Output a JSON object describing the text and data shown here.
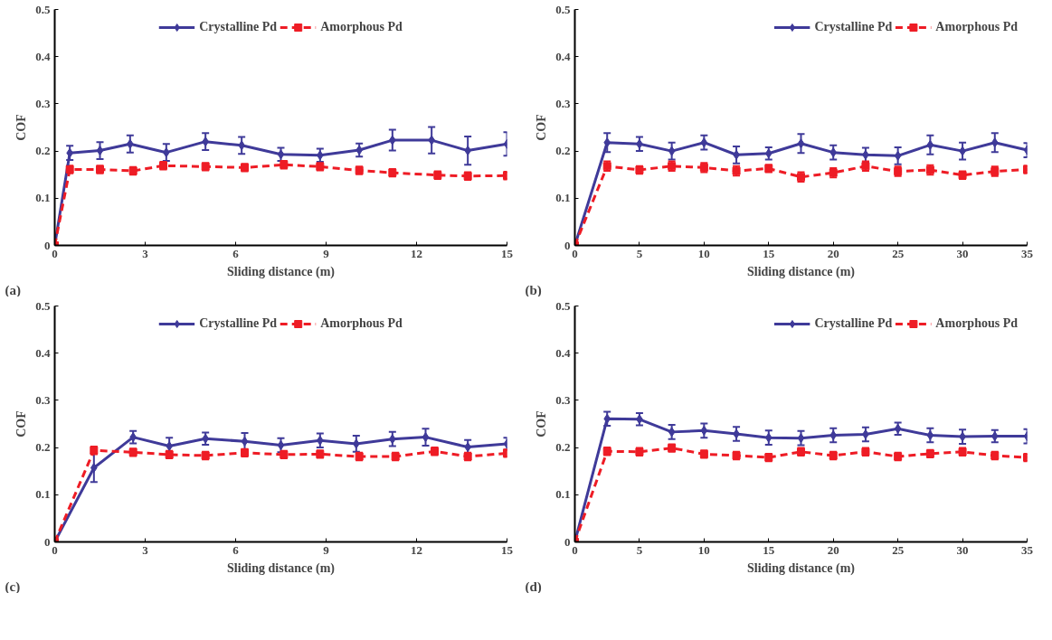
{
  "chart_data": [
    {
      "type": "line",
      "xlabel": "Sliding distance (m)",
      "ylabel": "COF",
      "annotations": [
        "(a)"
      ],
      "xlim": [
        0,
        15
      ],
      "xticks": [
        0,
        3,
        6,
        9,
        12,
        15
      ],
      "ylim": [
        0,
        0.5
      ],
      "yticks": [
        0,
        0.1,
        0.2,
        0.3,
        0.4,
        0.5
      ],
      "grid": false,
      "legend": "top",
      "series": [
        {
          "name": "Crystalline Pd",
          "color": "#3f3a99",
          "marker": "diamond",
          "line_style": "solid",
          "x": [
            0,
            0.5,
            1.5,
            2.5,
            3.7,
            5,
            6.2,
            7.5,
            8.8,
            10.1,
            11.2,
            12.5,
            13.7,
            15
          ],
          "values": [
            0,
            0.196,
            0.201,
            0.215,
            0.197,
            0.22,
            0.212,
            0.193,
            0.191,
            0.202,
            0.223,
            0.223,
            0.201,
            0.215
          ],
          "errors": [
            null,
            0.015,
            0.018,
            0.018,
            0.018,
            0.018,
            0.018,
            0.014,
            0.014,
            0.014,
            0.022,
            0.028,
            0.03,
            0.025
          ]
        },
        {
          "name": "Amorphous Pd",
          "color": "#ee1c25",
          "marker": "square",
          "line_style": "dashed",
          "x": [
            0,
            0.5,
            1.5,
            2.6,
            3.6,
            5,
            6.3,
            7.6,
            8.8,
            10.1,
            11.2,
            12.7,
            13.7,
            15
          ],
          "values": [
            0,
            0.161,
            0.161,
            0.158,
            0.169,
            0.167,
            0.165,
            0.171,
            0.167,
            0.159,
            0.154,
            0.149,
            0.147,
            0.148
          ],
          "errors": [
            null,
            0.008,
            0.008,
            0.008,
            0.008,
            0.008,
            0.008,
            0.008,
            0.008,
            0.008,
            0.008,
            0.008,
            0.008,
            0.008
          ]
        }
      ]
    },
    {
      "type": "line",
      "xlabel": "Sliding distance (m)",
      "ylabel": "COF",
      "annotations": [
        "(b)"
      ],
      "xlim": [
        0,
        35
      ],
      "xticks": [
        0,
        5,
        10,
        15,
        20,
        25,
        30,
        35
      ],
      "ylim": [
        0,
        0.5
      ],
      "yticks": [
        0,
        0.1,
        0.2,
        0.3,
        0.4,
        0.5
      ],
      "grid": false,
      "legend": "top right",
      "series": [
        {
          "name": "Crystalline Pd",
          "color": "#3f3a99",
          "marker": "diamond",
          "line_style": "solid",
          "x": [
            0,
            2.5,
            5,
            7.5,
            10,
            12.5,
            15,
            17.5,
            20,
            22.5,
            25,
            27.5,
            30,
            32.5,
            35
          ],
          "values": [
            0,
            0.218,
            0.215,
            0.2,
            0.218,
            0.192,
            0.195,
            0.216,
            0.197,
            0.192,
            0.19,
            0.213,
            0.2,
            0.218,
            0.202
          ],
          "errors": [
            null,
            0.02,
            0.015,
            0.018,
            0.015,
            0.018,
            0.013,
            0.02,
            0.015,
            0.015,
            0.018,
            0.02,
            0.018,
            0.02,
            0.015
          ]
        },
        {
          "name": "Amorphous Pd",
          "color": "#ee1c25",
          "marker": "square",
          "line_style": "dashed",
          "x": [
            0,
            2.5,
            5,
            7.5,
            10,
            12.5,
            15,
            17.5,
            20,
            22.5,
            25,
            27.5,
            30,
            32.5,
            35
          ],
          "values": [
            0,
            0.168,
            0.16,
            0.168,
            0.165,
            0.158,
            0.163,
            0.145,
            0.154,
            0.168,
            0.157,
            0.16,
            0.149,
            0.157,
            0.161
          ],
          "errors": [
            null,
            0.01,
            0.008,
            0.01,
            0.01,
            0.01,
            0.008,
            0.01,
            0.01,
            0.01,
            0.01,
            0.01,
            0.008,
            0.01,
            0.008
          ]
        }
      ]
    },
    {
      "type": "line",
      "xlabel": "Sliding distance (m)",
      "ylabel": "COF",
      "annotations": [
        "(c)"
      ],
      "xlim": [
        0,
        15
      ],
      "xticks": [
        0,
        3,
        6,
        9,
        12,
        15
      ],
      "ylim": [
        0,
        0.5
      ],
      "yticks": [
        0,
        0.1,
        0.2,
        0.3,
        0.4,
        0.5
      ],
      "grid": false,
      "legend": "top",
      "series": [
        {
          "name": "Crystalline Pd",
          "color": "#3f3a99",
          "marker": "diamond",
          "line_style": "solid",
          "x": [
            0,
            1.3,
            2.6,
            3.8,
            5,
            6.3,
            7.5,
            8.8,
            10,
            11.2,
            12.3,
            13.7,
            15
          ],
          "values": [
            0,
            0.157,
            0.222,
            0.203,
            0.219,
            0.213,
            0.205,
            0.215,
            0.208,
            0.218,
            0.222,
            0.201,
            0.208
          ],
          "errors": [
            null,
            0.03,
            0.013,
            0.018,
            0.013,
            0.018,
            0.015,
            0.015,
            0.017,
            0.015,
            0.018,
            0.015,
            0.013
          ]
        },
        {
          "name": "Amorphous Pd",
          "color": "#ee1c25",
          "marker": "square",
          "line_style": "dashed",
          "x": [
            0,
            1.3,
            2.6,
            3.8,
            5,
            6.3,
            7.6,
            8.8,
            10.1,
            11.3,
            12.6,
            13.7,
            15
          ],
          "values": [
            0,
            0.194,
            0.19,
            0.185,
            0.183,
            0.189,
            0.185,
            0.186,
            0.181,
            0.181,
            0.192,
            0.181,
            0.188
          ],
          "errors": [
            null,
            0.008,
            0.008,
            0.008,
            0.008,
            0.008,
            0.008,
            0.008,
            0.008,
            0.008,
            0.008,
            0.008,
            0.008
          ]
        }
      ]
    },
    {
      "type": "line",
      "xlabel": "Sliding distance (m)",
      "ylabel": "COF",
      "annotations": [
        "(d)"
      ],
      "xlim": [
        0,
        35
      ],
      "xticks": [
        0,
        5,
        10,
        15,
        20,
        25,
        30,
        35
      ],
      "ylim": [
        0,
        0.5
      ],
      "yticks": [
        0,
        0.1,
        0.2,
        0.3,
        0.4,
        0.5
      ],
      "grid": false,
      "legend": "top right",
      "series": [
        {
          "name": "Crystalline Pd",
          "color": "#3f3a99",
          "marker": "diamond",
          "line_style": "solid",
          "x": [
            0,
            2.5,
            5,
            7.5,
            10,
            12.5,
            15,
            17.5,
            20,
            22.5,
            25,
            27.5,
            30,
            32.5,
            35
          ],
          "values": [
            0,
            0.261,
            0.26,
            0.233,
            0.236,
            0.229,
            0.221,
            0.22,
            0.226,
            0.228,
            0.24,
            0.226,
            0.223,
            0.224,
            0.224
          ],
          "errors": [
            null,
            0.015,
            0.013,
            0.015,
            0.015,
            0.015,
            0.015,
            0.015,
            0.015,
            0.015,
            0.013,
            0.015,
            0.015,
            0.013,
            0.015
          ]
        },
        {
          "name": "Amorphous Pd",
          "color": "#ee1c25",
          "marker": "square",
          "line_style": "dashed",
          "x": [
            0,
            2.5,
            5,
            7.5,
            10,
            12.5,
            15,
            17.5,
            20,
            22.5,
            25,
            27.5,
            30,
            32.5,
            35
          ],
          "values": [
            0,
            0.192,
            0.191,
            0.199,
            0.186,
            0.183,
            0.179,
            0.191,
            0.183,
            0.191,
            0.181,
            0.187,
            0.191,
            0.183,
            0.179
          ],
          "errors": [
            null,
            0.008,
            0.008,
            0.008,
            0.008,
            0.008,
            0.008,
            0.008,
            0.008,
            0.008,
            0.008,
            0.008,
            0.008,
            0.008,
            0.008
          ]
        }
      ]
    }
  ]
}
